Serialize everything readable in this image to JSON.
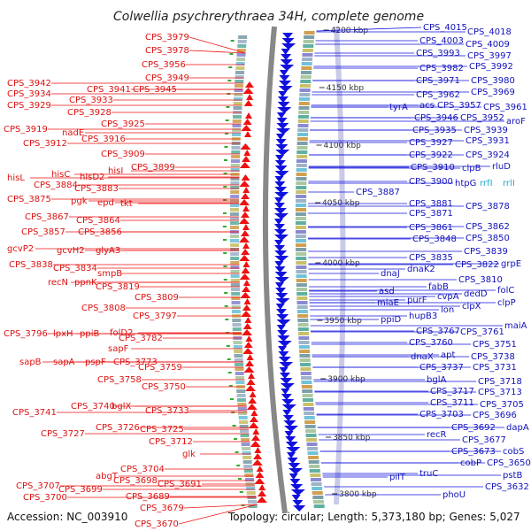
{
  "title": "Colwellia psychrerythraea 34H, complete genome",
  "footer": {
    "accession": "Accession: NC_003910",
    "summary": "Topology: circular; Length: 5,373,180 bp; Genes: 5,027"
  },
  "ticks": [
    "4200 kbp",
    "4150 kbp",
    "4100 kbp",
    "4050 kbp",
    "4000 kbp",
    "3950 kbp",
    "3900 kbp",
    "3850 kbp",
    "3800 kbp"
  ],
  "left_labels": [
    "CPS_3979",
    "CPS_3978",
    "CPS_3956",
    "CPS_3949",
    "CPS_3942",
    "CPS_3941",
    "CPS_3945",
    "CPS_3934",
    "CPS_3933",
    "CPS_3929",
    "CPS_3928",
    "CPS_3925",
    "CPS_3919",
    "nadE",
    "CPS_3916",
    "CPS_3912",
    "CPS_3909",
    "CPS_3899",
    "hisL",
    "hisC",
    "hisD2",
    "hisI",
    "CPS_3884",
    "CPS_3883",
    "CPS_3875",
    "pgk",
    "epd",
    "tkt",
    "CPS_3867",
    "CPS_3864",
    "CPS_3857",
    "CPS_3856",
    "gcvP2",
    "gcvH2",
    "glyA3",
    "CPS_3838",
    "CPS_3834",
    "smpB",
    "recN",
    "ppnK",
    "CPS_3819",
    "CPS_3809",
    "CPS_3808",
    "CPS_3797",
    "CPS_3796",
    "lpxH",
    "ppiB",
    "folD2",
    "CPS_3782",
    "sapF",
    "sapB",
    "sapA",
    "pspF",
    "CPS_3773",
    "CPS_3759",
    "CPS_3758",
    "CPS_3750",
    "CPS_3741",
    "CPS_3740",
    "bglX",
    "CPS_3733",
    "CPS_3727",
    "CPS_3726",
    "CPS_3725",
    "CPS_3712",
    "glk",
    "CPS_3704",
    "abgT",
    "CPS_3698",
    "CPS_3707",
    "CPS_3699",
    "CPS_3700",
    "CPS_3691",
    "CPS_3689",
    "CPS_3679",
    "CPS_3670"
  ],
  "right_labels": [
    "CPS_4015",
    "CPS_4018",
    "CPS_4003",
    "CPS_4009",
    "CPS_3993",
    "CPS_3997",
    "CPS_3982",
    "CPS_3992",
    "CPS_3971",
    "CPS_3980",
    "CPS_3962",
    "CPS_3969",
    "tyrA",
    "acs",
    "CPS_3957",
    "CPS_3961",
    "CPS_3946",
    "CPS_3952",
    "aroF",
    "CPS_3935",
    "CPS_3939",
    "CPS_3927",
    "CPS_3931",
    "CPS_3922",
    "CPS_3924",
    "CPS_3910",
    "clpB",
    "rluD",
    "CPS_3900",
    "htpG",
    "CPS_3887",
    "CPS_3881",
    "CPS_3878",
    "CPS_3871",
    "CPS_3861",
    "CPS_3862",
    "CPS_3848",
    "CPS_3850",
    "CPS_3839",
    "CPS_3835",
    "dnaJ",
    "dnaK2",
    "CPS_3822",
    "grpE",
    "CPS_3810",
    "fabB",
    "asd",
    "purF",
    "cvpA",
    "dedD",
    "folC",
    "miaE",
    "lon",
    "clpX",
    "clpP",
    "ppiD",
    "hupB3",
    "maiA",
    "CPS_3767",
    "CPS_3761",
    "CPS_3760",
    "CPS_3751",
    "dnaX",
    "apt",
    "CPS_3738",
    "CPS_3737",
    "CPS_3731",
    "bglA",
    "CPS_3718",
    "CPS_3717",
    "CPS_3713",
    "CPS_3711",
    "CPS_3705",
    "CPS_3703",
    "CPS_3696",
    "CPS_3692",
    "dapA",
    "recR",
    "CPS_3677",
    "CPS_3673",
    "cobS",
    "cobP",
    "CPS_3650",
    "truC",
    "pilT",
    "pstB",
    "phoU",
    "CPS_3632"
  ],
  "cyan_labels": [
    "rrfI",
    "rrlI"
  ],
  "colors": {
    "forward": "#ee1111",
    "reverse": "#1111dd",
    "backbone": "#888888",
    "gc_skew": "#33aa33"
  }
}
